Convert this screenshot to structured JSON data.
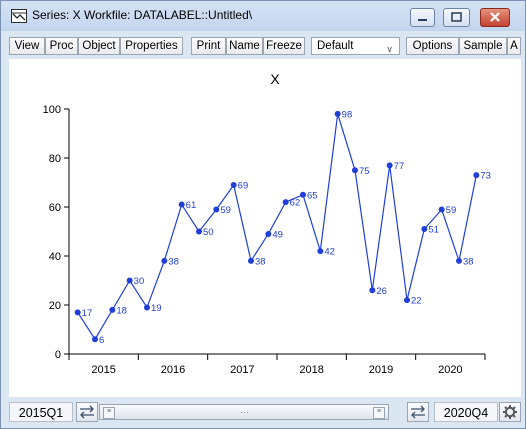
{
  "window": {
    "title": "Series: X   Workfile: DATALABEL::Untitled\\"
  },
  "toolbar": {
    "buttons": [
      "View",
      "Proc",
      "Object",
      "Properties",
      "Print",
      "Name",
      "Freeze",
      "Options",
      "Sample",
      "A"
    ],
    "view_selector_value": "Default"
  },
  "chart_data": {
    "type": "line",
    "title": "X",
    "xlabel": "",
    "ylabel": "",
    "ylim": [
      0,
      100
    ],
    "y_ticks": [
      0,
      20,
      40,
      60,
      80,
      100
    ],
    "x_ticks": [
      "2015",
      "2016",
      "2017",
      "2018",
      "2019",
      "2020"
    ],
    "grid": false,
    "series": [
      {
        "color": "#1f3fd8",
        "x": [
          "2015Q1",
          "2015Q2",
          "2015Q3",
          "2015Q4",
          "2016Q1",
          "2016Q2",
          "2016Q3",
          "2016Q4",
          "2017Q1",
          "2017Q2",
          "2017Q3",
          "2017Q4",
          "2018Q1",
          "2018Q2",
          "2018Q3",
          "2018Q4",
          "2019Q1",
          "2019Q2",
          "2019Q3",
          "2019Q4",
          "2020Q1",
          "2020Q2",
          "2020Q3",
          "2020Q4"
        ],
        "values": [
          17,
          6,
          18,
          30,
          19,
          38,
          61,
          50,
          59,
          69,
          38,
          49,
          62,
          65,
          42,
          98,
          75,
          26,
          77,
          22,
          51,
          59,
          38,
          73
        ],
        "labels": [
          "17",
          "6",
          "18",
          "30",
          "19",
          "38",
          "61",
          "50",
          "59",
          "69",
          "38",
          "49",
          "62",
          "65",
          "42",
          "98",
          "75",
          "26",
          "77",
          "22",
          "51",
          "59",
          "38",
          "73"
        ]
      }
    ]
  },
  "status": {
    "range_start": "2015Q1",
    "range_end": "2020Q4"
  }
}
